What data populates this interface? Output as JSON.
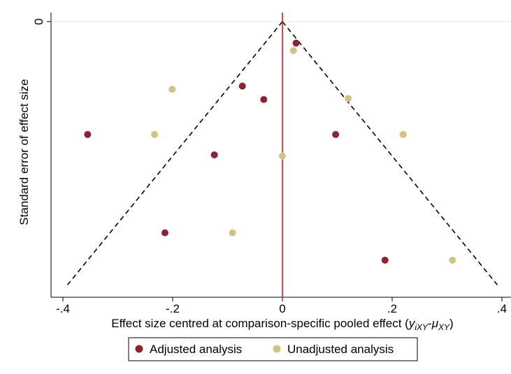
{
  "chart_data": {
    "type": "scatter",
    "title": "",
    "xlabel_parts": [
      "Effect size centred at comparison-specific pooled effect (",
      "y",
      "iXY",
      "-",
      "μ",
      "XY",
      ")"
    ],
    "ylabel": "Standard error of effect size",
    "xlim": [
      -0.41,
      0.41
    ],
    "ylim_reversed": [
      0,
      0.51
    ],
    "x_ticks": [
      -0.4,
      -0.2,
      0,
      0.2,
      0.4
    ],
    "x_tick_labels": [
      "-.4",
      "-.2",
      "0",
      ".2",
      ".4"
    ],
    "y_ticks": [
      0
    ],
    "y_tick_labels": [
      "0"
    ],
    "reference_line_x": 0,
    "funnel": {
      "apex_se": 0,
      "base_se": 0.49,
      "base_x": [
        -0.3917,
        0.3917
      ]
    },
    "grid": "horizontal at y ticks",
    "legend_position": "bottom",
    "series": [
      {
        "name": "Adjusted analysis",
        "color": "#8b2332",
        "points": [
          {
            "x": 0.025,
            "y": 0.04
          },
          {
            "x": -0.073,
            "y": 0.12
          },
          {
            "x": -0.034,
            "y": 0.145
          },
          {
            "x": -0.355,
            "y": 0.21
          },
          {
            "x": 0.097,
            "y": 0.21
          },
          {
            "x": -0.124,
            "y": 0.248
          },
          {
            "x": -0.214,
            "y": 0.393
          },
          {
            "x": 0.187,
            "y": 0.444
          }
        ]
      },
      {
        "name": "Unadjusted analysis",
        "color": "#cfc484",
        "points": [
          {
            "x": 0.02,
            "y": 0.054
          },
          {
            "x": -0.201,
            "y": 0.126
          },
          {
            "x": 0.12,
            "y": 0.143
          },
          {
            "x": -0.233,
            "y": 0.21
          },
          {
            "x": 0.22,
            "y": 0.21
          },
          {
            "x": 0.0,
            "y": 0.25
          },
          {
            "x": -0.091,
            "y": 0.393
          },
          {
            "x": 0.31,
            "y": 0.444
          }
        ]
      }
    ]
  },
  "colors": {
    "reference_line": "#e0191f",
    "funnel": "#000000",
    "grid": "#e6e6e6"
  }
}
